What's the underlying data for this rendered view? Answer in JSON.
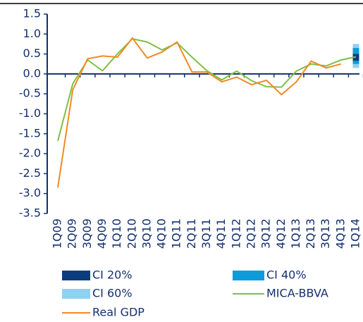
{
  "chart_data": {
    "type": "line",
    "categories": [
      "1Q09",
      "2Q09",
      "3Q09",
      "4Q09",
      "1Q10",
      "2Q10",
      "3Q10",
      "4Q10",
      "1Q11",
      "2Q11",
      "3Q11",
      "4Q11",
      "1Q12",
      "2Q12",
      "3Q12",
      "4Q12",
      "1Q13",
      "2Q13",
      "3Q13",
      "4Q13",
      "1Q14"
    ],
    "intervals": [
      {
        "name": "CI 60%",
        "color": "#8fd1f1",
        "low": 0.15,
        "high": 0.75
      },
      {
        "name": "CI 40%",
        "color": "#0f9bda",
        "low": 0.25,
        "high": 0.65
      },
      {
        "name": "CI 20%",
        "color": "#0b3d7e",
        "low": 0.33,
        "high": 0.5
      }
    ],
    "series": [
      {
        "name": "MICA-BBVA",
        "color": "#7dc242",
        "values": [
          -1.68,
          -0.25,
          0.35,
          0.08,
          0.5,
          0.88,
          0.8,
          0.6,
          0.78,
          0.42,
          0.08,
          -0.15,
          0.07,
          -0.17,
          -0.32,
          -0.33,
          0.07,
          0.25,
          0.2,
          0.35,
          0.43
        ]
      },
      {
        "name": "Real GDP",
        "color": "#f08a24",
        "values": [
          -2.85,
          -0.4,
          0.38,
          0.45,
          0.42,
          0.9,
          0.4,
          0.55,
          0.8,
          0.05,
          0.05,
          -0.2,
          -0.08,
          -0.27,
          -0.16,
          -0.52,
          -0.2,
          0.32,
          0.15,
          0.25,
          null
        ]
      }
    ],
    "ylim": [
      -3.5,
      1.5
    ],
    "yticks": [
      1.5,
      {
        "value": 1.0,
        "label": "1.0"
      },
      0.5,
      {
        "value": 0.0,
        "label": "0.0"
      },
      -0.5,
      {
        "value": -1.0,
        "label": "-1.0"
      },
      -1.5,
      {
        "value": -2.0,
        "label": "-2.0"
      },
      -2.5,
      {
        "value": -3.0,
        "label": "-3.0"
      },
      -3.5
    ],
    "grid": false
  }
}
